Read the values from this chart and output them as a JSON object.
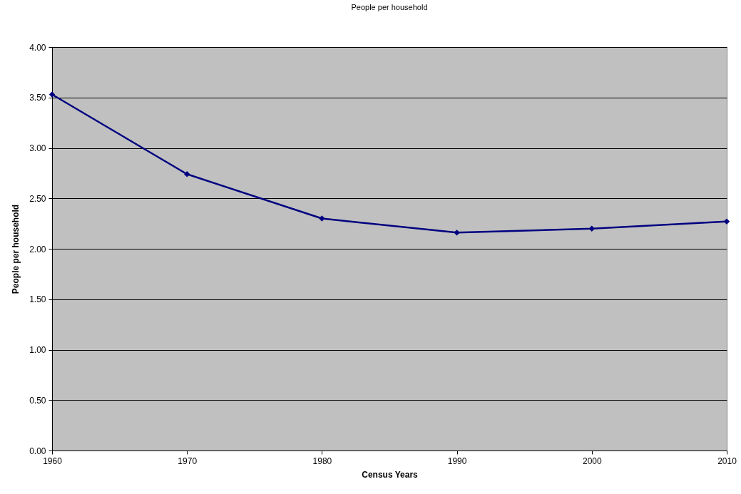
{
  "chart_data": {
    "type": "line",
    "title": "People per household",
    "xlabel": "Census Years",
    "ylabel": "People per household",
    "x": [
      1960,
      1970,
      1980,
      1990,
      2000,
      2010
    ],
    "series": [
      {
        "color": "#000080",
        "values": [
          3.53,
          2.74,
          2.3,
          2.16,
          2.2,
          2.27
        ]
      }
    ],
    "xlim": [
      1960,
      2010
    ],
    "xticks": [
      1960,
      1970,
      1980,
      1990,
      2000,
      2010
    ],
    "ylim": [
      0,
      4
    ],
    "yticks": [
      {
        "value": 0,
        "label": "0.00"
      },
      {
        "value": 0.5,
        "label": "0.50"
      },
      {
        "value": 1,
        "label": "1.00"
      },
      {
        "value": 1.5,
        "label": "1.50"
      },
      {
        "value": 2,
        "label": "2.00"
      },
      {
        "value": 2.5,
        "label": "2.50"
      },
      {
        "value": 3,
        "label": "3.00"
      },
      {
        "value": 3.5,
        "label": "3.50"
      },
      {
        "value": 4,
        "label": "4.00"
      }
    ],
    "grid": "y",
    "legend": false,
    "marker": "diamond",
    "line_style": "solid"
  }
}
